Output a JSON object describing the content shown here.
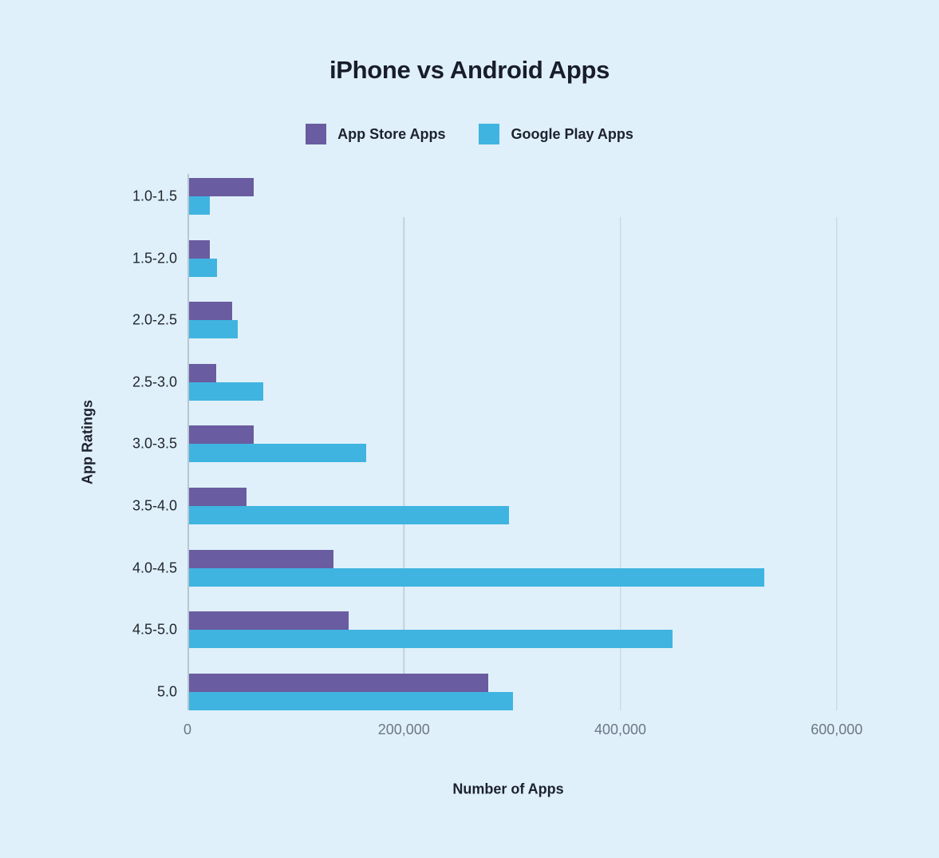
{
  "title": "iPhone vs Android Apps",
  "legend": [
    {
      "label": "App Store Apps",
      "color": "#6a5ca0"
    },
    {
      "label": "Google Play Apps",
      "color": "#3fb4e1"
    }
  ],
  "axes": {
    "y_title": "App Ratings",
    "x_title": "Number of Apps"
  },
  "colors": {
    "background": "#dff0fa",
    "app_store": "#6a5ca0",
    "google_play": "#3fb4e1",
    "text_dark": "#1d212e",
    "tick_gray": "#6e7686",
    "gridline": "#c2d2db"
  },
  "chart_data": {
    "type": "bar",
    "orientation": "horizontal",
    "title": "iPhone vs Android Apps",
    "xlabel": "Number of Apps",
    "ylabel": "App Ratings",
    "categories": [
      "1.0-1.5",
      "1.5-2.0",
      "2.0-2.5",
      "2.5-3.0",
      "3.0-3.5",
      "3.5-4.0",
      "4.0-4.5",
      "4.5-5.0",
      "5.0"
    ],
    "series": [
      {
        "name": "App Store Apps",
        "color": "#6a5ca0",
        "values": [
          60000,
          19000,
          40000,
          25000,
          60000,
          53000,
          134000,
          148000,
          277000
        ]
      },
      {
        "name": "Google Play Apps",
        "color": "#3fb4e1",
        "values": [
          19000,
          26000,
          45000,
          69000,
          164000,
          296000,
          533000,
          448000,
          300000
        ]
      }
    ],
    "xlim": [
      0,
      640000
    ],
    "xticks": [
      {
        "value": 0,
        "label": "0"
      },
      {
        "value": 200000,
        "label": "200,000"
      },
      {
        "value": 400000,
        "label": "400,000"
      },
      {
        "value": 600000,
        "label": "600,000"
      }
    ],
    "grid": true,
    "legend_position": "top"
  }
}
